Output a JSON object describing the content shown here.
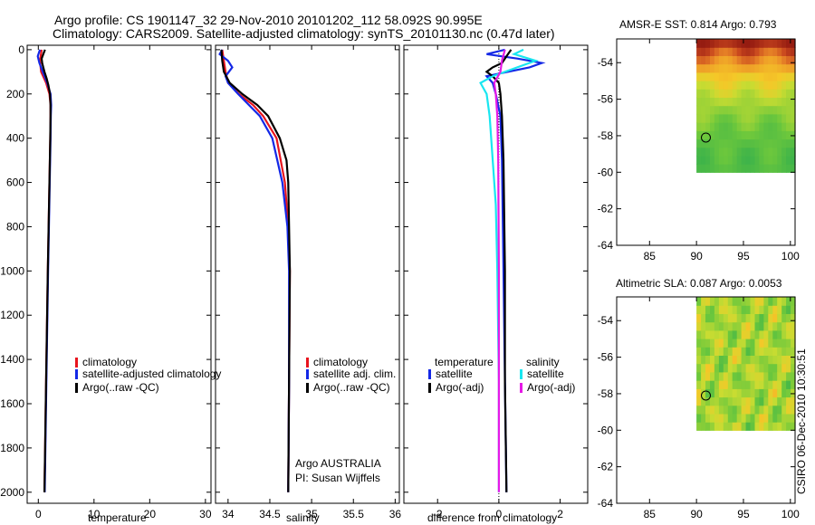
{
  "header": {
    "title_line1": "Argo profile: CS 1901147_32 29-Nov-2010 20101202_112 58.092S 90.995E",
    "title_line2": "Climatology: CARS2009. Satellite-adjusted climatology: synTS_20101130.nc (0.47d later)"
  },
  "footer": {
    "stamp": "CSIRO 06-Dec-2010 10:30:51"
  },
  "colors": {
    "climatology": "#e8141e",
    "satellite": "#1428e6",
    "argo": "#000000",
    "sal_satellite": "#19e6f0",
    "sal_argo": "#e619e6"
  },
  "chart_data": [
    {
      "id": "temperature",
      "type": "line",
      "xlabel": "temperature",
      "ylabel": "",
      "xlim": [
        -2,
        31
      ],
      "ylim": [
        2050,
        -20
      ],
      "xticks": [
        0,
        10,
        20,
        30
      ],
      "yticks": [
        0,
        200,
        400,
        600,
        800,
        1000,
        1200,
        1400,
        1600,
        1800,
        2000
      ],
      "legend_position": "lower-center",
      "legend": [
        "climatology",
        "satellite-adjusted climatology",
        "Argo(..raw -QC)"
      ],
      "series": [
        {
          "name": "climatology",
          "color_key": "climatology",
          "depth": [
            0,
            50,
            100,
            150,
            200,
            250,
            300,
            400,
            600,
            800,
            1000,
            1500,
            2000
          ],
          "values": [
            0.6,
            0.3,
            0.5,
            1.4,
            2.0,
            2.2,
            2.2,
            2.15,
            2.0,
            1.85,
            1.7,
            1.4,
            1.1
          ]
        },
        {
          "name": "satellite-adjusted climatology",
          "color_key": "satellite",
          "depth": [
            0,
            30,
            60,
            100,
            150,
            200,
            250,
            300,
            400,
            600,
            800,
            1000,
            1500,
            2000
          ],
          "values": [
            0.3,
            -0.1,
            0.2,
            0.8,
            1.6,
            2.2,
            2.3,
            2.25,
            2.2,
            2.05,
            1.9,
            1.75,
            1.45,
            1.15
          ]
        },
        {
          "name": "Argo(..raw -QC)",
          "color_key": "argo",
          "depth": [
            0,
            20,
            40,
            60,
            80,
            100,
            130,
            160,
            200,
            250,
            300,
            400,
            600,
            800,
            1000,
            1500,
            2000
          ],
          "values": [
            1.2,
            0.9,
            0.6,
            0.7,
            0.9,
            1.1,
            1.5,
            1.8,
            2.1,
            2.2,
            2.2,
            2.15,
            2.0,
            1.85,
            1.7,
            1.4,
            1.1
          ]
        }
      ]
    },
    {
      "id": "salinity",
      "type": "line",
      "xlabel": "salinity",
      "ylabel": "",
      "xlim": [
        33.85,
        36.05
      ],
      "ylim": [
        2050,
        -20
      ],
      "xticks": [
        34,
        34.5,
        35,
        35.5,
        36
      ],
      "xtick_labels": [
        "34",
        "34.5",
        "35",
        "35.5",
        "36"
      ],
      "legend_position": "lower-center",
      "legend": [
        "climatology",
        "satellite adj. clim.",
        "Argo(..raw -QC)"
      ],
      "annotations": [
        "Argo AUSTRALIA",
        "PI: Susan Wijffels"
      ],
      "series": [
        {
          "name": "climatology",
          "color_key": "climatology",
          "depth": [
            0,
            50,
            100,
            150,
            200,
            250,
            300,
            400,
            600,
            800,
            1000,
            1500,
            2000
          ],
          "values": [
            33.93,
            33.95,
            33.97,
            34.0,
            34.13,
            34.3,
            34.42,
            34.58,
            34.68,
            34.72,
            34.74,
            34.73,
            34.72
          ]
        },
        {
          "name": "satellite adj. clim.",
          "color_key": "satellite",
          "depth": [
            0,
            20,
            50,
            80,
            120,
            150,
            200,
            250,
            300,
            400,
            600,
            800,
            1000,
            1500,
            2000
          ],
          "values": [
            33.93,
            33.9,
            34.0,
            34.05,
            33.97,
            34.0,
            34.12,
            34.25,
            34.38,
            34.53,
            34.65,
            34.71,
            34.73,
            34.73,
            34.72
          ]
        },
        {
          "name": "Argo(..raw -QC)",
          "color_key": "argo",
          "depth": [
            0,
            50,
            100,
            150,
            200,
            250,
            300,
            400,
            500,
            600,
            800,
            1000,
            1500,
            2000
          ],
          "values": [
            33.92,
            33.93,
            33.95,
            34.02,
            34.17,
            34.35,
            34.48,
            34.62,
            34.7,
            34.72,
            34.73,
            34.74,
            34.73,
            34.72
          ]
        }
      ]
    },
    {
      "id": "difference",
      "type": "line",
      "xlabel": "difference from climatology",
      "ylabel": "",
      "xlim": [
        -3.1,
        2.9
      ],
      "ylim": [
        2050,
        -20
      ],
      "xticks": [
        -2,
        0,
        2
      ],
      "legend_position": "lower-center",
      "legend": [
        "temperature",
        "satellite",
        "Argo(-adj)",
        "salinity",
        "satellite",
        "Argo(-adj)"
      ],
      "series": [
        {
          "name": "temperature satellite",
          "color_key": "satellite",
          "depth": [
            0,
            20,
            40,
            60,
            80,
            100,
            120,
            150,
            200,
            300,
            500,
            1000,
            1500,
            2000
          ],
          "values": [
            0.2,
            -0.4,
            0.6,
            1.4,
            1.0,
            0.3,
            -0.4,
            -0.2,
            -0.1,
            0.05,
            0.1,
            0.15,
            0.2,
            0.25
          ]
        },
        {
          "name": "temperature Argo(-adj)",
          "color_key": "argo",
          "depth": [
            0,
            20,
            40,
            60,
            80,
            100,
            120,
            150,
            200,
            300,
            500,
            1000,
            1500,
            2000
          ],
          "values": [
            0.4,
            0.3,
            0.2,
            0.1,
            -0.2,
            -0.4,
            -0.2,
            0.0,
            0.05,
            0.1,
            0.15,
            0.2,
            0.2,
            0.25
          ]
        },
        {
          "name": "salinity satellite",
          "color_key": "sal_satellite",
          "depth": [
            0,
            20,
            50,
            80,
            120,
            150,
            200,
            300,
            500,
            700,
            1000,
            1500,
            2000
          ],
          "values": [
            0.8,
            0.5,
            1.2,
            0.6,
            -0.2,
            -0.6,
            -0.4,
            -0.3,
            -0.2,
            -0.1,
            -0.05,
            0.0,
            0.0
          ]
        },
        {
          "name": "salinity Argo(-adj)",
          "color_key": "sal_argo",
          "depth": [
            0,
            50,
            100,
            150,
            200,
            300,
            500,
            1000,
            1500,
            2000
          ],
          "values": [
            0.2,
            0.1,
            0.05,
            -0.15,
            -0.1,
            -0.05,
            -0.02,
            0.0,
            0.0,
            0.0
          ]
        }
      ]
    },
    {
      "id": "amsre-sst",
      "type": "heatmap",
      "title": "AMSR-E SST: 0.814  Argo: 0.793",
      "xlim": [
        81.5,
        100.5
      ],
      "ylim": [
        -64,
        -52.7
      ],
      "xticks": [
        85,
        90,
        95,
        100
      ],
      "yticks": [
        -54,
        -56,
        -58,
        -60,
        -62,
        -64
      ],
      "data_extent_lon": [
        90,
        100.5
      ],
      "data_extent_lat": [
        -60,
        -52.7
      ],
      "marker": {
        "lon": 91,
        "lat": -58.1
      }
    },
    {
      "id": "altimetric-sla",
      "type": "heatmap",
      "title": "Altimetric SLA: 0.087  Argo: 0.0053",
      "xlim": [
        81.5,
        100.5
      ],
      "ylim": [
        -64,
        -52.7
      ],
      "xticks": [
        85,
        90,
        95,
        100
      ],
      "yticks": [
        -54,
        -56,
        -58,
        -60,
        -62,
        -64
      ],
      "data_extent_lon": [
        90,
        100.5
      ],
      "data_extent_lat": [
        -60,
        -52.7
      ],
      "marker": {
        "lon": 91,
        "lat": -58.1
      }
    }
  ]
}
